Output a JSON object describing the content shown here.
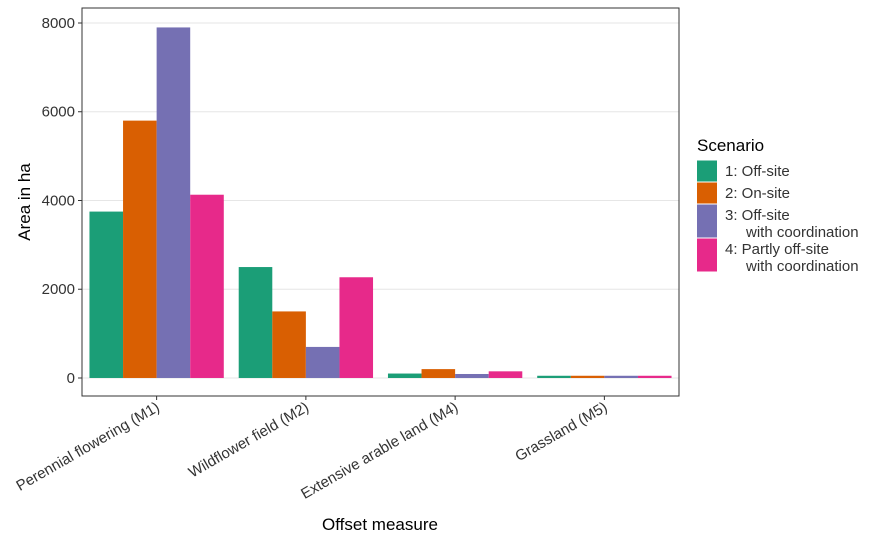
{
  "chart_data": {
    "type": "bar",
    "xlabel": "Offset measure",
    "ylabel": "Area in ha",
    "legend_title": "Scenario",
    "legend": "right",
    "categories": [
      "Perennial flowering (M1)",
      "Wildflower field (M2)",
      "Extensive arable land (M4)",
      "Grassland (M5)"
    ],
    "series": [
      {
        "name": "1: Off-site",
        "color": "#1b9e77",
        "values": [
          3750,
          2500,
          100,
          50
        ]
      },
      {
        "name": "2: On-site",
        "color": "#d95f02",
        "values": [
          5800,
          1500,
          200,
          50
        ]
      },
      {
        "name": "3: Off-site\nwith coordination",
        "color": "#7570b3",
        "values": [
          7900,
          700,
          90,
          50
        ]
      },
      {
        "name": "4: Partly off-site\nwith coordination",
        "color": "#e7298a",
        "values": [
          4130,
          2270,
          150,
          50
        ]
      }
    ],
    "ylim": [
      -406,
      8338
    ],
    "yticks": [
      0,
      2000,
      4000,
      6000,
      8000
    ],
    "grid": true
  }
}
